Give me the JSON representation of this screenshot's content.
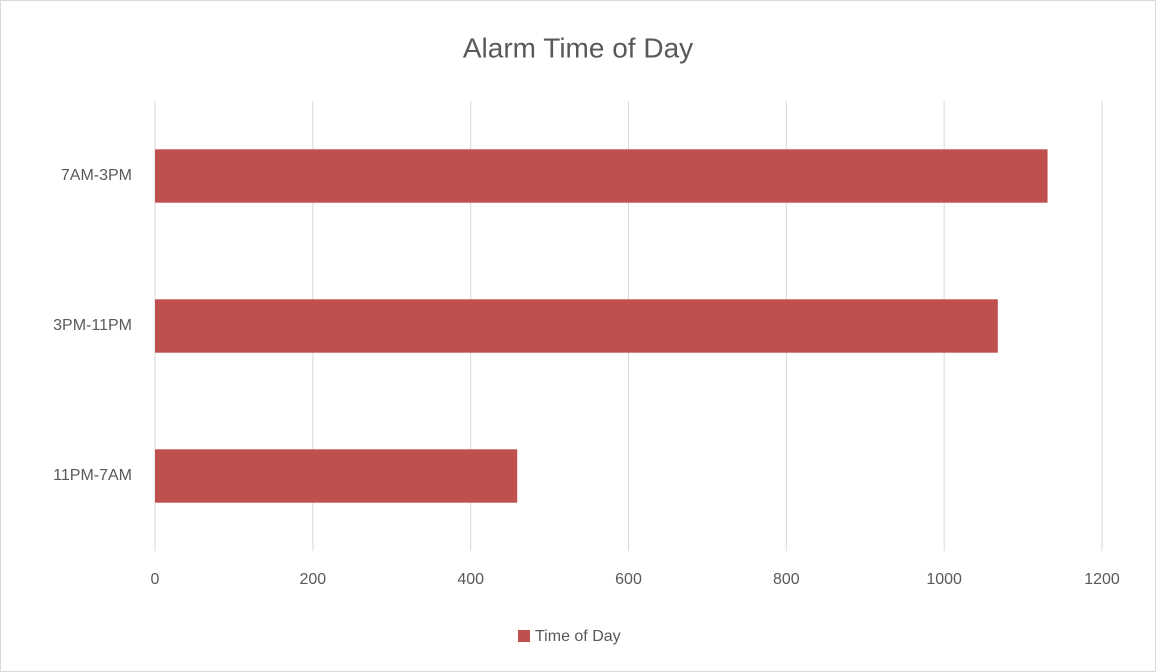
{
  "chart_data": {
    "type": "bar",
    "orientation": "horizontal",
    "title": "Alarm Time of Day",
    "categories": [
      "11PM-7AM",
      "3PM-11PM",
      "7AM-3PM"
    ],
    "series": [
      {
        "name": "Time of Day",
        "color": "#c0504d",
        "values": [
          459,
          1068,
          1131
        ]
      }
    ],
    "xlim": [
      0,
      1200
    ],
    "xticks": [
      0,
      200,
      400,
      600,
      800,
      1000,
      1200
    ],
    "grid": true,
    "legend": "bottom"
  }
}
